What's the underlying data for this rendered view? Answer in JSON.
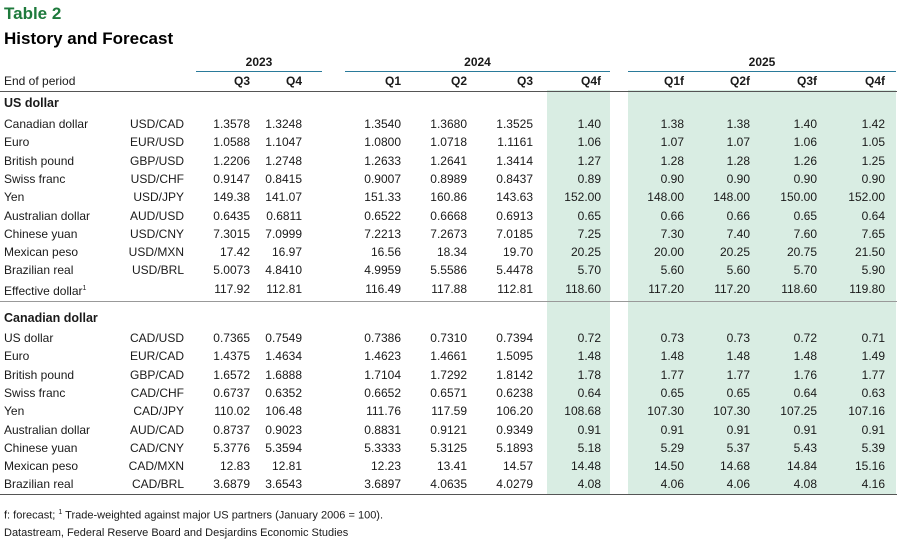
{
  "table_label": "Table 2",
  "title": "History and Forecast",
  "years": [
    "2023",
    "2024",
    "2025"
  ],
  "end_of_period": "End of period",
  "quarters": [
    "Q3",
    "Q4",
    "Q1",
    "Q2",
    "Q3",
    "Q4f",
    "Q1f",
    "Q2f",
    "Q3f",
    "Q4f"
  ],
  "us_section": {
    "title": "US dollar",
    "rows": [
      {
        "name": "Canadian dollar",
        "code": "USD/CAD",
        "values": [
          "1.3578",
          "1.3248",
          "1.3540",
          "1.3680",
          "1.3525",
          "1.40",
          "1.38",
          "1.38",
          "1.40",
          "1.42"
        ]
      },
      {
        "name": "Euro",
        "code": "EUR/USD",
        "values": [
          "1.0588",
          "1.1047",
          "1.0800",
          "1.0718",
          "1.1161",
          "1.06",
          "1.07",
          "1.07",
          "1.06",
          "1.05"
        ]
      },
      {
        "name": "British pound",
        "code": "GBP/USD",
        "values": [
          "1.2206",
          "1.2748",
          "1.2633",
          "1.2641",
          "1.3414",
          "1.27",
          "1.28",
          "1.28",
          "1.26",
          "1.25"
        ]
      },
      {
        "name": "Swiss franc",
        "code": "USD/CHF",
        "values": [
          "0.9147",
          "0.8415",
          "0.9007",
          "0.8989",
          "0.8437",
          "0.89",
          "0.90",
          "0.90",
          "0.90",
          "0.90"
        ]
      },
      {
        "name": "Yen",
        "code": "USD/JPY",
        "values": [
          "149.38",
          "141.07",
          "151.33",
          "160.86",
          "143.63",
          "152.00",
          "148.00",
          "148.00",
          "150.00",
          "152.00"
        ]
      },
      {
        "name": "Australian dollar",
        "code": "AUD/USD",
        "values": [
          "0.6435",
          "0.6811",
          "0.6522",
          "0.6668",
          "0.6913",
          "0.65",
          "0.66",
          "0.66",
          "0.65",
          "0.64"
        ]
      },
      {
        "name": "Chinese yuan",
        "code": "USD/CNY",
        "values": [
          "7.3015",
          "7.0999",
          "7.2213",
          "7.2673",
          "7.0185",
          "7.25",
          "7.30",
          "7.40",
          "7.60",
          "7.65"
        ]
      },
      {
        "name": "Mexican peso",
        "code": "USD/MXN",
        "values": [
          "17.42",
          "16.97",
          "16.56",
          "18.34",
          "19.70",
          "20.25",
          "20.00",
          "20.25",
          "20.75",
          "21.50"
        ]
      },
      {
        "name": "Brazilian real",
        "code": "USD/BRL",
        "values": [
          "5.0073",
          "4.8410",
          "4.9959",
          "5.5586",
          "5.4478",
          "5.70",
          "5.60",
          "5.60",
          "5.70",
          "5.90"
        ]
      }
    ],
    "effective": {
      "name": "Effective dollar",
      "sup": "1",
      "values": [
        "117.92",
        "112.81",
        "116.49",
        "117.88",
        "112.81",
        "118.60",
        "117.20",
        "117.20",
        "118.60",
        "119.80"
      ]
    }
  },
  "cad_section": {
    "title": "Canadian dollar",
    "rows": [
      {
        "name": "US dollar",
        "code": "CAD/USD",
        "values": [
          "0.7365",
          "0.7549",
          "0.7386",
          "0.7310",
          "0.7394",
          "0.72",
          "0.73",
          "0.73",
          "0.72",
          "0.71"
        ]
      },
      {
        "name": "Euro",
        "code": "EUR/CAD",
        "values": [
          "1.4375",
          "1.4634",
          "1.4623",
          "1.4661",
          "1.5095",
          "1.48",
          "1.48",
          "1.48",
          "1.48",
          "1.49"
        ]
      },
      {
        "name": "British pound",
        "code": "GBP/CAD",
        "values": [
          "1.6572",
          "1.6888",
          "1.7104",
          "1.7292",
          "1.8142",
          "1.78",
          "1.77",
          "1.77",
          "1.76",
          "1.77"
        ]
      },
      {
        "name": "Swiss franc",
        "code": "CAD/CHF",
        "values": [
          "0.6737",
          "0.6352",
          "0.6652",
          "0.6571",
          "0.6238",
          "0.64",
          "0.65",
          "0.65",
          "0.64",
          "0.63"
        ]
      },
      {
        "name": "Yen",
        "code": "CAD/JPY",
        "values": [
          "110.02",
          "106.48",
          "111.76",
          "117.59",
          "106.20",
          "108.68",
          "107.30",
          "107.30",
          "107.25",
          "107.16"
        ]
      },
      {
        "name": "Australian dollar",
        "code": "AUD/CAD",
        "values": [
          "0.8737",
          "0.9023",
          "0.8831",
          "0.9121",
          "0.9349",
          "0.91",
          "0.91",
          "0.91",
          "0.91",
          "0.91"
        ]
      },
      {
        "name": "Chinese yuan",
        "code": "CAD/CNY",
        "values": [
          "5.3776",
          "5.3594",
          "5.3333",
          "5.3125",
          "5.1893",
          "5.18",
          "5.29",
          "5.37",
          "5.43",
          "5.39"
        ]
      },
      {
        "name": "Mexican peso",
        "code": "CAD/MXN",
        "values": [
          "12.83",
          "12.81",
          "12.23",
          "13.41",
          "14.57",
          "14.48",
          "14.50",
          "14.68",
          "14.84",
          "15.16"
        ]
      },
      {
        "name": "Brazilian real",
        "code": "CAD/BRL",
        "values": [
          "3.6879",
          "3.6543",
          "3.6897",
          "4.0635",
          "4.0279",
          "4.08",
          "4.06",
          "4.06",
          "4.08",
          "4.16"
        ]
      }
    ]
  },
  "footnote": {
    "prefix": "f: forecast; ",
    "sup": "1",
    "text": " Trade-weighted against major US partners (January 2006 = 100)."
  },
  "source": "Datastream, Federal Reserve Board and Desjardins Economic Studies",
  "colors": {
    "highlight": "#d9ede3",
    "title_green": "#1e7a3c",
    "year_rule": "#2a7a9a"
  }
}
